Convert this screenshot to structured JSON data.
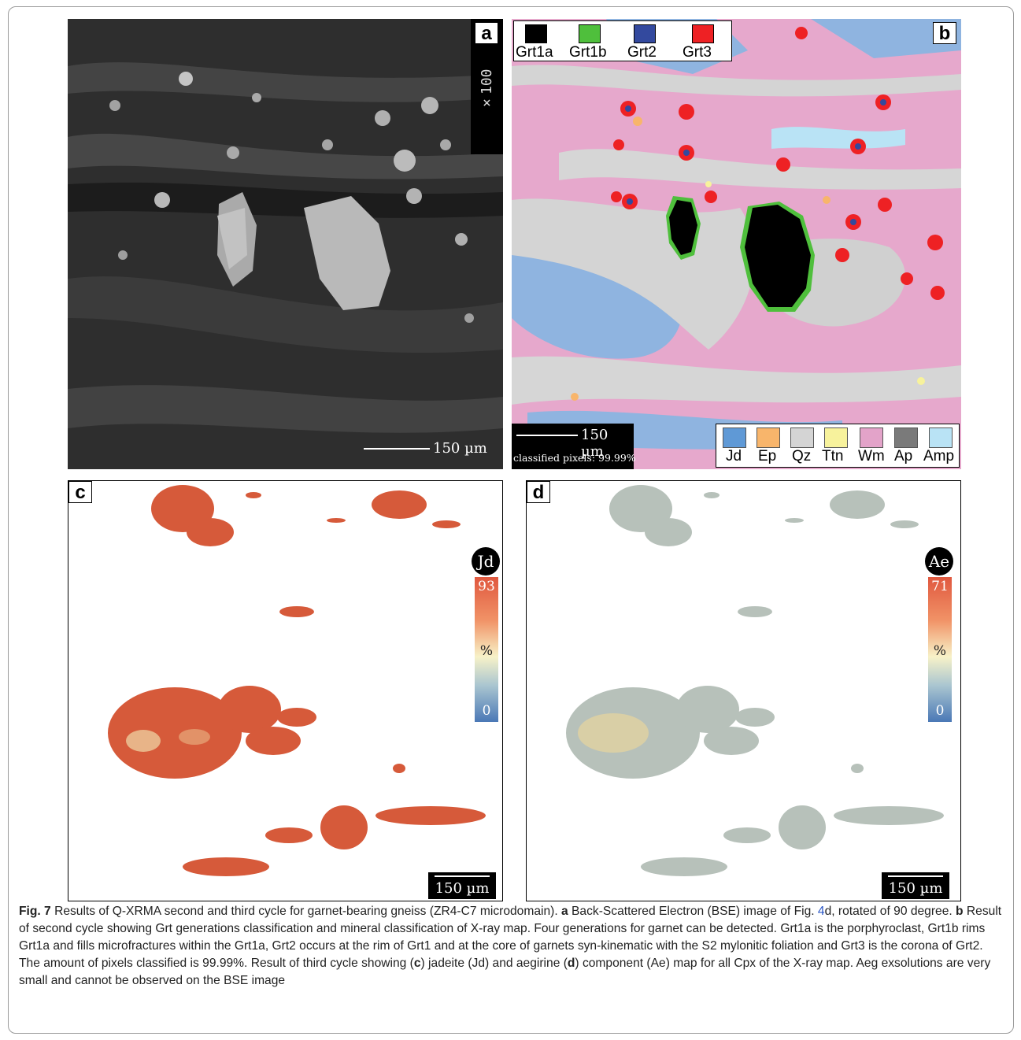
{
  "figure": {
    "panels": {
      "a": {
        "label": "a",
        "magnification": "×100",
        "scale_text": "150 µm"
      },
      "b": {
        "label": "b",
        "scale_text": "150 µm",
        "classified_text": "classified pixels: 99.99%",
        "garnet_legend": [
          {
            "name": "Grt1a",
            "color": "#000000"
          },
          {
            "name": "Grt1b",
            "color": "#4fbf3c"
          },
          {
            "name": "Grt2",
            "color": "#33499e"
          },
          {
            "name": "Grt3",
            "color": "#ee2124"
          }
        ],
        "mineral_legend": [
          {
            "name": "Jd",
            "color": "#5f99d6"
          },
          {
            "name": "Ep",
            "color": "#f8b56b"
          },
          {
            "name": "Qz",
            "color": "#d4d4d4"
          },
          {
            "name": "Ttn",
            "color": "#f7f29c"
          },
          {
            "name": "Wm",
            "color": "#e3a3c9"
          },
          {
            "name": "Ap",
            "color": "#7a7a7a"
          },
          {
            "name": "Amp",
            "color": "#b9e3f5"
          }
        ]
      },
      "c": {
        "label": "c",
        "component": "Jd",
        "max": "93",
        "unit": "%",
        "min": "0",
        "scale_text": "150 µm"
      },
      "d": {
        "label": "d",
        "component": "Ae",
        "max": "71",
        "unit": "%",
        "min": "0",
        "scale_text": "150 µm"
      }
    },
    "caption": {
      "fig_label": "Fig. 7",
      "s1": "  Results of Q-XRMA second and third cycle for garnet-bearing gneiss (ZR4-C7 microdomain). ",
      "a": "a",
      "s2": " Back-Scattered Electron (BSE) image of Fig. ",
      "ref": "4",
      "s3": "d, rotated of 90 degree. ",
      "b": "b",
      "s4": " Result of second cycle showing Grt generations classification and mineral classification of X-ray map. Four generations for garnet can be detected. Grt1a is the porphyroclast, Grt1b rims Grt1a and fills microfractures within the Grt1a, Grt2 occurs at the rim of Grt1 and at the core of garnets syn-kinematic with the S2 mylonitic foliation and Grt3 is the corona of Grt2. The amount of pixels classified is 99.99%. Result of third cycle showing (",
      "c": "c",
      "s5": ") jadeite (Jd) and aegirine (",
      "d": "d",
      "s6": ") component (Ae) map for all Cpx of the X-ray map. Aeg exsolutions are very small and cannot be observed on the BSE image"
    }
  }
}
